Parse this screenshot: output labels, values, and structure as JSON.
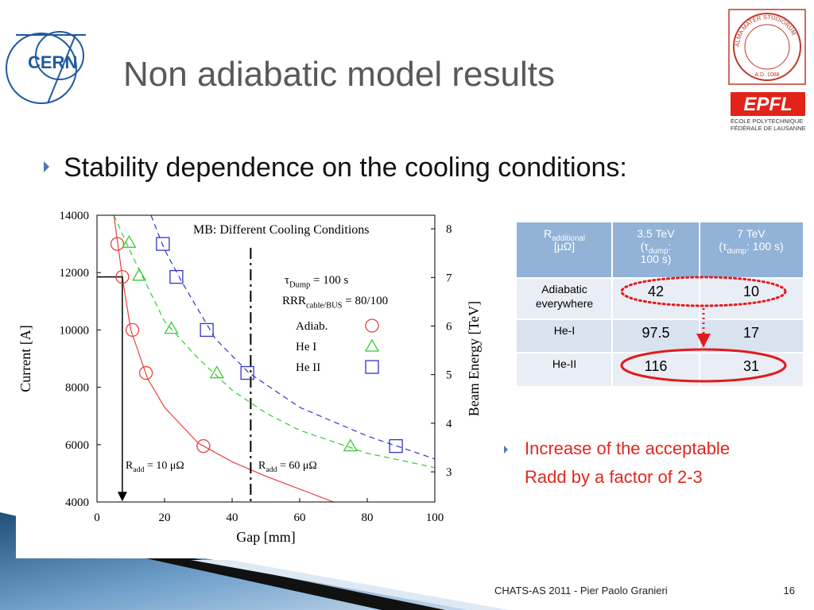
{
  "slide": {
    "title": "Non adiabatic model results",
    "bullet": "Stability dependence on the cooling conditions:",
    "note_lines": [
      "Increase of the acceptable",
      "Radd by a factor of 2-3"
    ],
    "footer": "CHATS-AS 2011 - Pier Paolo Granieri",
    "page": "16"
  },
  "logos": {
    "cern": "CERN",
    "seal_text": "ALMA MATER STUDIORUM",
    "seal_date": "A.D. 1088",
    "epfl": "EPFL",
    "epfl_lines": [
      "ÉCOLE POLYTECHNIQUE",
      "FÉDÉRALE DE LAUSANNE"
    ]
  },
  "chart_data": {
    "type": "scatter",
    "title": "MB: Different Cooling Conditions",
    "x_label": "Gap [mm]",
    "y_label": "Current [A]",
    "y2_label": "Beam Energy [TeV]",
    "xlim": [
      0,
      100
    ],
    "xticks": [
      0,
      20,
      40,
      60,
      80,
      100
    ],
    "ylim": [
      4000,
      14000
    ],
    "yticks": [
      4000,
      6000,
      8000,
      10000,
      12000,
      14000
    ],
    "y2lim": [
      2.38,
      8.28
    ],
    "y2ticks": [
      3,
      4,
      5,
      6,
      7,
      8
    ],
    "annotations": [
      [
        {
          "text": "τ"
        },
        {
          "text": "Dump",
          "sub": true
        },
        {
          "text": " = 100 s"
        }
      ],
      [
        {
          "text": "RRR"
        },
        {
          "text": "cable/BUS",
          "sub": true
        },
        {
          "text": " = 80/100"
        }
      ]
    ],
    "radd_labels": [
      [
        {
          "text": "R"
        },
        {
          "text": "add",
          "sub": true
        },
        {
          "text": " = 10 μΩ"
        }
      ],
      [
        {
          "text": "R"
        },
        {
          "text": "add",
          "sub": true
        },
        {
          "text": " = 60 μΩ"
        }
      ]
    ],
    "vline_x": 45.5,
    "series": [
      {
        "name": "Adiab.",
        "color": "#e8413c",
        "marker": "circle",
        "dash": false,
        "x": [
          6,
          7.5,
          10.5,
          14.5,
          31.5
        ],
        "values": [
          13000,
          11850,
          10000,
          8500,
          5950
        ],
        "fit_x": [
          5,
          7.5,
          10,
          15,
          20,
          30,
          40,
          50,
          60,
          70
        ],
        "fit_y": [
          14000,
          11850,
          10000,
          8300,
          7300,
          6050,
          5400,
          4900,
          4450,
          4000
        ]
      },
      {
        "name": "He I",
        "color": "#33cc33",
        "marker": "triangle",
        "dash": true,
        "x": [
          9.5,
          12.5,
          22,
          35.5,
          75
        ],
        "values": [
          13050,
          11900,
          10050,
          8500,
          5950
        ],
        "fit_x": [
          5,
          10,
          20,
          30,
          40,
          50,
          60,
          80,
          100
        ],
        "fit_y": [
          14000,
          12700,
          10300,
          9000,
          7900,
          7100,
          6500,
          5700,
          5200
        ]
      },
      {
        "name": "He II",
        "color": "#3333cc",
        "marker": "square",
        "dash": true,
        "x": [
          19.5,
          23.5,
          32.5,
          44.5,
          88.5
        ],
        "values": [
          13000,
          11850,
          10000,
          8500,
          5950
        ],
        "fit_x": [
          16,
          20,
          25,
          35,
          45,
          60,
          80,
          100
        ],
        "fit_y": [
          14000,
          12800,
          11700,
          9700,
          8500,
          7300,
          6300,
          5500
        ]
      }
    ]
  },
  "table": {
    "header": [
      [
        {
          "text": "R"
        },
        {
          "text": "additional",
          "sub": true
        },
        {
          "text": "[μΩ]",
          "br": true
        }
      ],
      [
        {
          "text": "3.5 TeV"
        },
        {
          "text": "(τ",
          "br": true
        },
        {
          "text": "dump",
          "sub": true
        },
        {
          "text": ":"
        },
        {
          "text": "100 s)",
          "br": true
        }
      ],
      [
        {
          "text": "7 TeV"
        },
        {
          "text": "(τ",
          "br": true
        },
        {
          "text": "dump",
          "sub": true
        },
        {
          "text": ": 100 s)"
        }
      ]
    ],
    "rows": [
      [
        [
          "Adiabatic",
          "everywhere"
        ],
        42,
        10
      ],
      [
        [
          "He-I"
        ],
        97.5,
        17
      ],
      [
        [
          "He-II"
        ],
        116,
        31
      ]
    ]
  }
}
